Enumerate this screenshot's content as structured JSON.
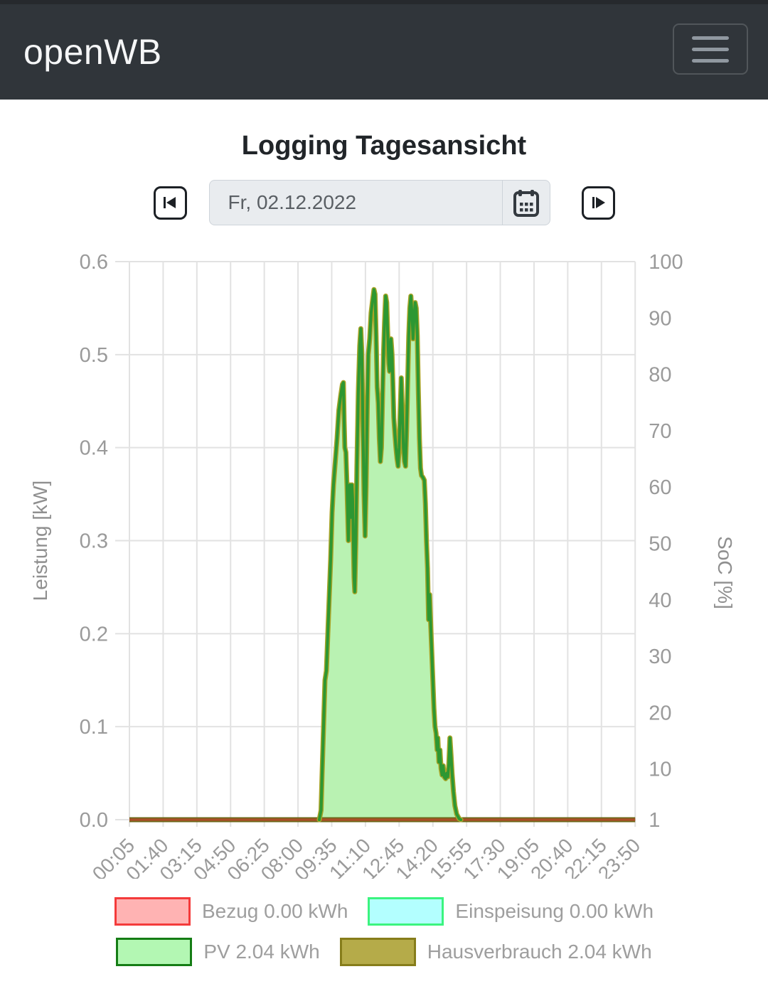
{
  "header": {
    "brand": "openWB",
    "menu_icon": "hamburger-icon"
  },
  "page": {
    "title": "Logging Tagesansicht"
  },
  "date_nav": {
    "prev_icon": "step-backward-icon",
    "next_icon": "step-forward-icon",
    "calendar_icon": "calendar-icon",
    "value": "Fr, 02.12.2022"
  },
  "chart_data": {
    "type": "area",
    "title": "Logging Tagesansicht",
    "grid": true,
    "x_ticks": [
      "00:05",
      "01:40",
      "03:15",
      "04:50",
      "06:25",
      "08:00",
      "09:35",
      "11:10",
      "12:45",
      "14:20",
      "15:55",
      "17:30",
      "19:05",
      "20:40",
      "22:15",
      "23:50"
    ],
    "x_range_minutes": [
      5,
      1430
    ],
    "y_left": {
      "label": "Leistung [kW]",
      "min": 0.0,
      "max": 0.6,
      "ticks": [
        0.6,
        0.5,
        0.4,
        0.3,
        0.2,
        0.1,
        0.0
      ]
    },
    "y_right": {
      "label": "SoC [%]",
      "ticks": [
        100,
        90,
        80,
        70,
        60,
        50,
        40,
        30,
        20,
        10,
        1
      ]
    },
    "colors": {
      "grid": "#e2e2e2",
      "tick_text": "#9a9a9a",
      "axis_title": "#8f8f8f"
    },
    "series": [
      {
        "name": "Bezug",
        "total": "0.00 kWh",
        "fill": "#ffb3b3",
        "border": "#f43b3b",
        "flat_value_kw": 0
      },
      {
        "name": "Einspeisung",
        "total": "0.00 kWh",
        "fill": "#b3ffff",
        "border": "#3bf47f",
        "flat_value_kw": 0
      },
      {
        "name": "PV",
        "total": "2.04 kWh",
        "fill": "#b3f7b3",
        "border": "#157d15",
        "line_color": "#2d9732",
        "halo_color": "#a8a428",
        "area_color": "#b9f2b2",
        "points_min_kw": [
          [
            540,
            0
          ],
          [
            545,
            0.01
          ],
          [
            548,
            0.05
          ],
          [
            552,
            0.1
          ],
          [
            556,
            0.15
          ],
          [
            560,
            0.16
          ],
          [
            564,
            0.2
          ],
          [
            566,
            0.22
          ],
          [
            572,
            0.28
          ],
          [
            576,
            0.33
          ],
          [
            580,
            0.36
          ],
          [
            585,
            0.385
          ],
          [
            590,
            0.41
          ],
          [
            595,
            0.44
          ],
          [
            600,
            0.455
          ],
          [
            605,
            0.468
          ],
          [
            608,
            0.47
          ],
          [
            610,
            0.43
          ],
          [
            612,
            0.4
          ],
          [
            615,
            0.395
          ],
          [
            618,
            0.36
          ],
          [
            620,
            0.33
          ],
          [
            622,
            0.3
          ],
          [
            624,
            0.33
          ],
          [
            626,
            0.36
          ],
          [
            628,
            0.335
          ],
          [
            630,
            0.325
          ],
          [
            632,
            0.36
          ],
          [
            634,
            0.345
          ],
          [
            636,
            0.3
          ],
          [
            638,
            0.26
          ],
          [
            640,
            0.245
          ],
          [
            643,
            0.3
          ],
          [
            646,
            0.38
          ],
          [
            650,
            0.46
          ],
          [
            654,
            0.51
          ],
          [
            657,
            0.528
          ],
          [
            660,
            0.5
          ],
          [
            663,
            0.42
          ],
          [
            666,
            0.35
          ],
          [
            669,
            0.305
          ],
          [
            672,
            0.36
          ],
          [
            675,
            0.44
          ],
          [
            678,
            0.5
          ],
          [
            682,
            0.517
          ],
          [
            686,
            0.545
          ],
          [
            690,
            0.558
          ],
          [
            694,
            0.57
          ],
          [
            697,
            0.565
          ],
          [
            700,
            0.52
          ],
          [
            703,
            0.465
          ],
          [
            706,
            0.448
          ],
          [
            709,
            0.41
          ],
          [
            712,
            0.385
          ],
          [
            715,
            0.4
          ],
          [
            718,
            0.45
          ],
          [
            721,
            0.5
          ],
          [
            724,
            0.535
          ],
          [
            727,
            0.563
          ],
          [
            730,
            0.556
          ],
          [
            733,
            0.52
          ],
          [
            736,
            0.49
          ],
          [
            738,
            0.482
          ],
          [
            740,
            0.5
          ],
          [
            742,
            0.517
          ],
          [
            745,
            0.5
          ],
          [
            748,
            0.46
          ],
          [
            750,
            0.432
          ],
          [
            753,
            0.415
          ],
          [
            756,
            0.4
          ],
          [
            759,
            0.388
          ],
          [
            762,
            0.38
          ],
          [
            765,
            0.4
          ],
          [
            768,
            0.44
          ],
          [
            771,
            0.475
          ],
          [
            774,
            0.44
          ],
          [
            777,
            0.4
          ],
          [
            780,
            0.385
          ],
          [
            783,
            0.38
          ],
          [
            786,
            0.42
          ],
          [
            789,
            0.47
          ],
          [
            792,
            0.52
          ],
          [
            795,
            0.55
          ],
          [
            798,
            0.563
          ],
          [
            801,
            0.545
          ],
          [
            804,
            0.517
          ],
          [
            807,
            0.54
          ],
          [
            810,
            0.556
          ],
          [
            813,
            0.55
          ],
          [
            816,
            0.52
          ],
          [
            819,
            0.46
          ],
          [
            822,
            0.41
          ],
          [
            825,
            0.378
          ],
          [
            828,
            0.37
          ],
          [
            832,
            0.368
          ],
          [
            836,
            0.365
          ],
          [
            839,
            0.34
          ],
          [
            842,
            0.3
          ],
          [
            845,
            0.27
          ],
          [
            848,
            0.215
          ],
          [
            851,
            0.242
          ],
          [
            854,
            0.21
          ],
          [
            857,
            0.18
          ],
          [
            860,
            0.15
          ],
          [
            863,
            0.12
          ],
          [
            866,
            0.1
          ],
          [
            869,
            0.093
          ],
          [
            872,
            0.075
          ],
          [
            874,
            0.088
          ],
          [
            877,
            0.062
          ],
          [
            880,
            0.075
          ],
          [
            883,
            0.055
          ],
          [
            886,
            0.048
          ],
          [
            889,
            0.058
          ],
          [
            892,
            0.046
          ],
          [
            896,
            0.044
          ],
          [
            899,
            0.05
          ],
          [
            902,
            0.046
          ],
          [
            905,
            0.06
          ],
          [
            908,
            0.088
          ],
          [
            911,
            0.07
          ],
          [
            914,
            0.05
          ],
          [
            918,
            0.03
          ],
          [
            922,
            0.015
          ],
          [
            927,
            0.006
          ],
          [
            934,
            0.001
          ],
          [
            939,
            0
          ]
        ]
      },
      {
        "name": "Hausverbrauch",
        "total": "2.04 kWh",
        "fill": "#b5ab49",
        "border": "#867d1b",
        "baseline_edge": "#6d681a",
        "baseline_core": "#aa5028"
      }
    ],
    "legend_position": "bottom"
  }
}
